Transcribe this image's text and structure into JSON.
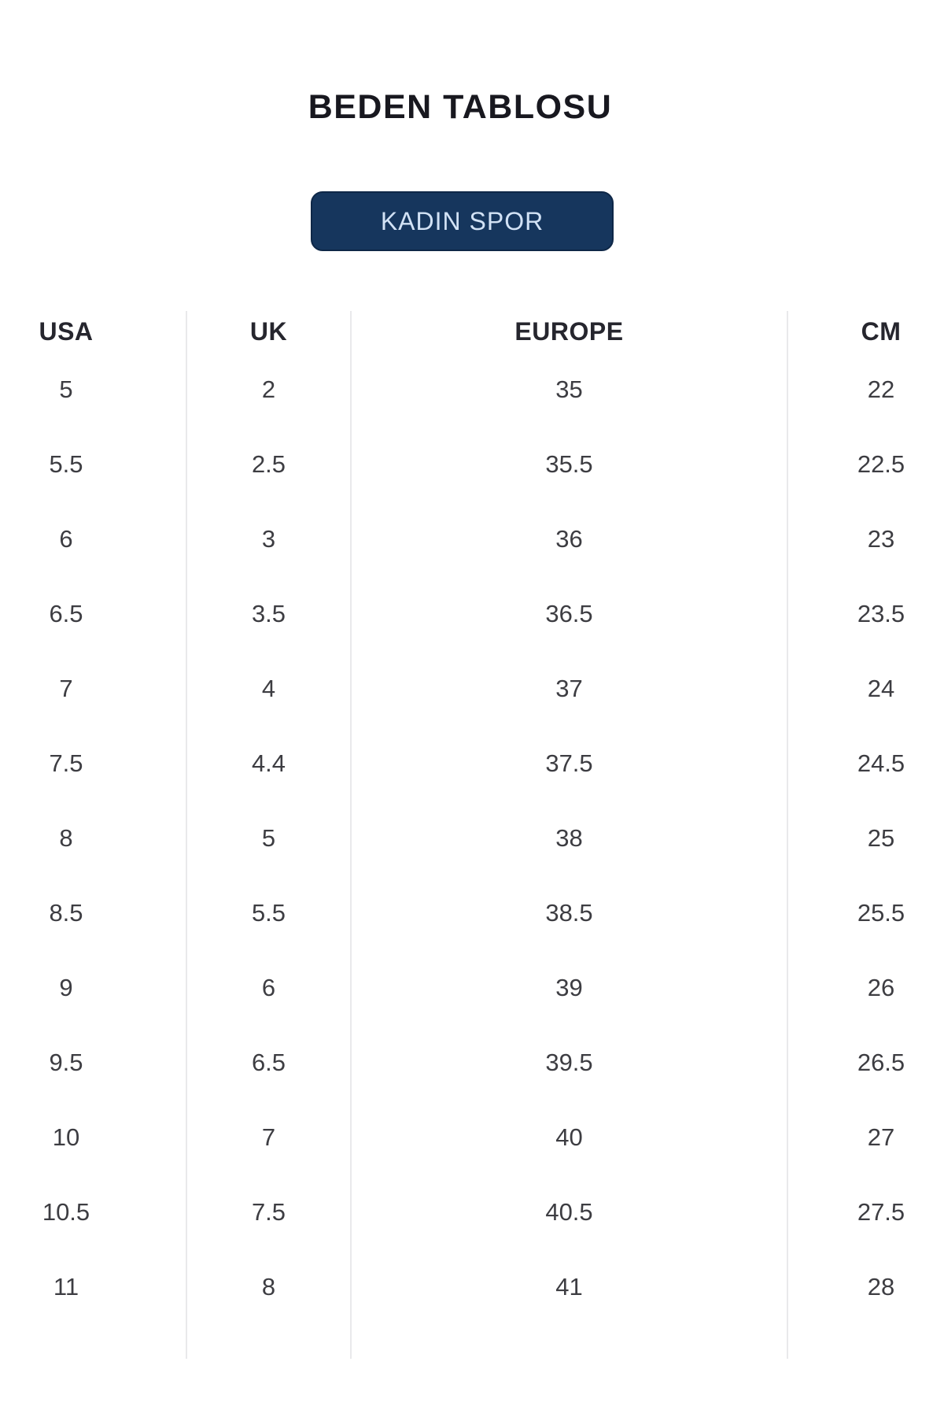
{
  "title": {
    "text": "BEDEN TABLOSU",
    "color": "#18181f"
  },
  "category_button": {
    "label": "KADIN SPOR",
    "background": "#16365d",
    "text_color": "#d2e2f5"
  },
  "table": {
    "divider_color": "#e9e9eb",
    "headers": [
      "USA",
      "UK",
      "EUROPE",
      "CM"
    ],
    "rows": [
      [
        "5",
        "2",
        "35",
        "22"
      ],
      [
        "5.5",
        "2.5",
        "35.5",
        "22.5"
      ],
      [
        "6",
        "3",
        "36",
        "23"
      ],
      [
        "6.5",
        "3.5",
        "36.5",
        "23.5"
      ],
      [
        "7",
        "4",
        "37",
        "24"
      ],
      [
        "7.5",
        "4.4",
        "37.5",
        "24.5"
      ],
      [
        "8",
        "5",
        "38",
        "25"
      ],
      [
        "8.5",
        "5.5",
        "38.5",
        "25.5"
      ],
      [
        "9",
        "6",
        "39",
        "26"
      ],
      [
        "9.5",
        "6.5",
        "39.5",
        "26.5"
      ],
      [
        "10",
        "7",
        "40",
        "27"
      ],
      [
        "10.5",
        "7.5",
        "40.5",
        "27.5"
      ],
      [
        "11",
        "8",
        "41",
        "28"
      ]
    ]
  }
}
